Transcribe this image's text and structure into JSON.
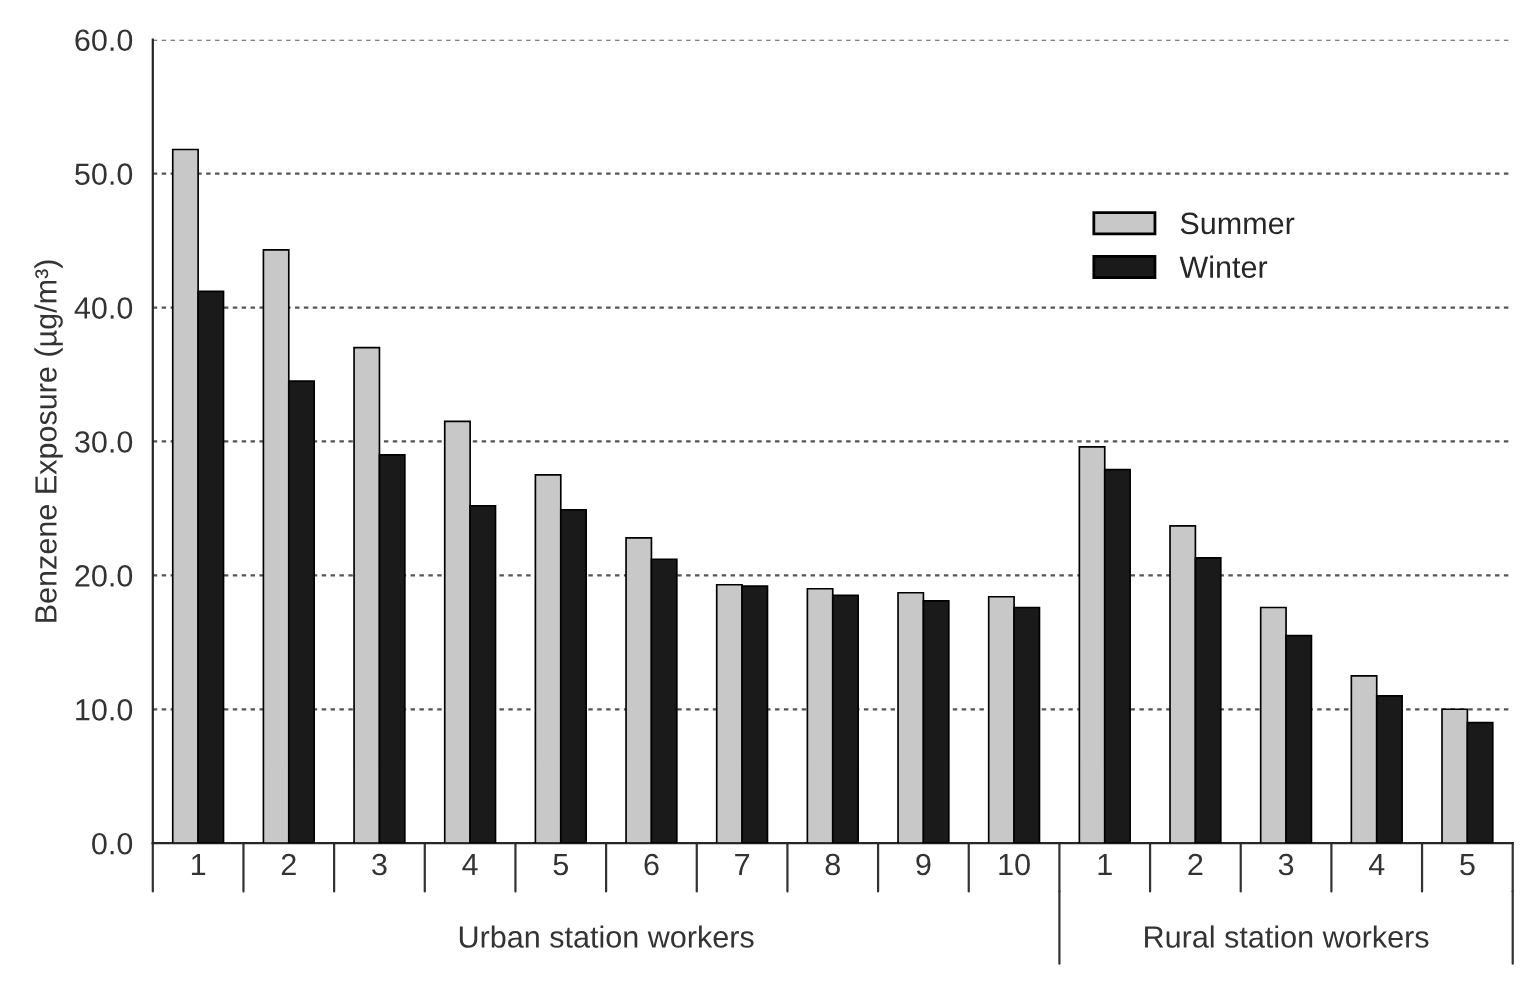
{
  "chart_data": {
    "type": "bar",
    "ylabel": "Benzene Exposure (µg/m³)",
    "categories": [
      "1",
      "2",
      "3",
      "4",
      "5",
      "6",
      "7",
      "8",
      "9",
      "10",
      "1",
      "2",
      "3",
      "4",
      "5"
    ],
    "series": [
      {
        "name": "Summer",
        "color": "#c8c8c8",
        "values": [
          51.8,
          44.3,
          37.0,
          31.5,
          27.5,
          22.8,
          19.3,
          19.0,
          18.7,
          18.4,
          29.6,
          23.7,
          17.6,
          12.5,
          10.0
        ]
      },
      {
        "name": "Winter",
        "color": "#1a1a1a",
        "values": [
          41.2,
          34.5,
          29.0,
          25.2,
          24.9,
          21.2,
          19.2,
          18.5,
          18.1,
          17.6,
          27.9,
          21.3,
          15.5,
          11.0,
          9.0
        ]
      }
    ],
    "ylim": [
      0,
      60
    ],
    "yticks": [
      {
        "value": 0,
        "label": "0.0"
      },
      {
        "value": 10,
        "label": "10.0"
      },
      {
        "value": 20,
        "label": "20.0"
      },
      {
        "value": 30,
        "label": "30.0"
      },
      {
        "value": 40,
        "label": "40.0"
      },
      {
        "value": 50,
        "label": "50.0"
      },
      {
        "value": 60,
        "label": "60.0"
      }
    ],
    "grid": "y",
    "legend": "top right",
    "annotations": [
      "Urban station workers",
      "Rural station workers"
    ]
  }
}
